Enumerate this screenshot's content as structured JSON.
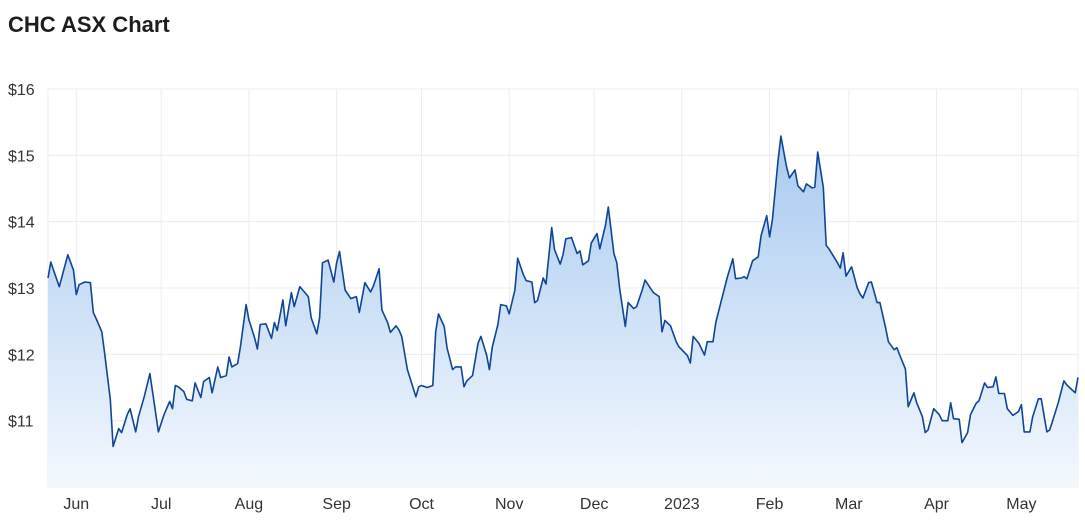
{
  "chart_data": {
    "type": "area",
    "title": "CHC ASX Chart",
    "xlabel": "",
    "ylabel": "",
    "xlim": [
      "2022-05-22",
      "2023-05-21"
    ],
    "ylim": [
      10,
      16
    ],
    "grid": true,
    "legend": "none",
    "y_ticks": [
      11,
      12,
      13,
      14,
      15,
      16
    ],
    "y_tick_labels": [
      "$11",
      "$12",
      "$13",
      "$14",
      "$15",
      "$16"
    ],
    "x_ticks": [
      "2022-06-01",
      "2022-07-01",
      "2022-08-01",
      "2022-09-01",
      "2022-10-01",
      "2022-11-01",
      "2022-12-01",
      "2023-01-01",
      "2023-02-01",
      "2023-03-01",
      "2023-04-01",
      "2023-05-01"
    ],
    "x_tick_labels": [
      "Jun",
      "Jul",
      "Aug",
      "Sep",
      "Oct",
      "Nov",
      "Dec",
      "2023",
      "Feb",
      "Mar",
      "Apr",
      "May"
    ],
    "colors": {
      "line": "#0f4596",
      "fill_top": "#a8caf0",
      "fill_bottom": "#f4f8fe",
      "grid": "#ececec"
    },
    "series": [
      {
        "x": [
          "2022-05-22",
          "2022-05-23",
          "2022-05-25",
          "2022-05-26",
          "2022-05-29",
          "2022-05-31",
          "2022-06-01",
          "2022-06-02",
          "2022-06-04",
          "2022-06-06",
          "2022-06-07",
          "2022-06-08",
          "2022-06-10",
          "2022-06-11",
          "2022-06-13",
          "2022-06-14",
          "2022-06-16",
          "2022-06-17",
          "2022-06-19",
          "2022-06-20",
          "2022-06-22",
          "2022-06-23",
          "2022-06-25",
          "2022-06-27",
          "2022-06-30",
          "2022-07-02",
          "2022-07-04",
          "2022-07-05",
          "2022-07-06",
          "2022-07-07",
          "2022-07-09",
          "2022-07-10",
          "2022-07-12",
          "2022-07-13",
          "2022-07-15",
          "2022-07-16",
          "2022-07-18",
          "2022-07-19",
          "2022-07-21",
          "2022-07-22",
          "2022-07-24",
          "2022-07-25",
          "2022-07-26",
          "2022-07-28",
          "2022-07-29",
          "2022-07-31",
          "2022-08-01",
          "2022-08-03",
          "2022-08-04",
          "2022-08-05",
          "2022-08-07",
          "2022-08-09",
          "2022-08-10",
          "2022-08-11",
          "2022-08-13",
          "2022-08-14",
          "2022-08-16",
          "2022-08-17",
          "2022-08-19",
          "2022-08-20",
          "2022-08-22",
          "2022-08-23",
          "2022-08-25",
          "2022-08-26",
          "2022-08-27",
          "2022-08-29",
          "2022-08-31",
          "2022-09-01",
          "2022-09-02",
          "2022-09-04",
          "2022-09-06",
          "2022-09-08",
          "2022-09-09",
          "2022-09-11",
          "2022-09-13",
          "2022-09-14",
          "2022-09-16",
          "2022-09-17",
          "2022-09-19",
          "2022-09-20",
          "2022-09-22",
          "2022-09-23",
          "2022-09-24",
          "2022-09-26",
          "2022-09-29",
          "2022-09-30",
          "2022-10-01",
          "2022-10-03",
          "2022-10-05",
          "2022-10-06",
          "2022-10-07",
          "2022-10-09",
          "2022-10-10",
          "2022-10-12",
          "2022-10-13",
          "2022-10-15",
          "2022-10-16",
          "2022-10-17",
          "2022-10-19",
          "2022-10-21",
          "2022-10-22",
          "2022-10-24",
          "2022-10-25",
          "2022-10-26",
          "2022-10-28",
          "2022-10-29",
          "2022-10-31",
          "2022-11-01",
          "2022-11-03",
          "2022-11-04",
          "2022-11-06",
          "2022-11-07",
          "2022-11-09",
          "2022-11-10",
          "2022-11-11",
          "2022-11-13",
          "2022-11-14",
          "2022-11-16",
          "2022-11-17",
          "2022-11-19",
          "2022-11-20",
          "2022-11-21",
          "2022-11-23",
          "2022-11-25",
          "2022-11-26",
          "2022-11-27",
          "2022-11-29",
          "2022-11-30",
          "2022-12-02",
          "2022-12-03",
          "2022-12-05",
          "2022-12-06",
          "2022-12-08",
          "2022-12-09",
          "2022-12-10",
          "2022-12-12",
          "2022-12-13",
          "2022-12-15",
          "2022-12-16",
          "2022-12-18",
          "2022-12-19",
          "2022-12-21",
          "2022-12-22",
          "2022-12-24",
          "2022-12-25",
          "2022-12-26",
          "2022-12-28",
          "2022-12-30",
          "2022-12-31",
          "2023-01-01",
          "2023-01-03",
          "2023-01-04",
          "2023-01-05",
          "2023-01-07",
          "2023-01-09",
          "2023-01-10",
          "2023-01-12",
          "2023-01-13",
          "2023-01-15",
          "2023-01-17",
          "2023-01-19",
          "2023-01-20",
          "2023-01-22",
          "2023-01-23",
          "2023-01-24",
          "2023-01-26",
          "2023-01-28",
          "2023-01-29",
          "2023-01-31",
          "2023-02-01",
          "2023-02-02",
          "2023-02-04",
          "2023-02-05",
          "2023-02-07",
          "2023-02-08",
          "2023-02-10",
          "2023-02-11",
          "2023-02-13",
          "2023-02-14",
          "2023-02-16",
          "2023-02-17",
          "2023-02-18",
          "2023-02-20",
          "2023-02-21",
          "2023-02-22",
          "2023-02-25",
          "2023-02-26",
          "2023-02-27",
          "2023-02-28",
          "2023-03-02",
          "2023-03-04",
          "2023-03-05",
          "2023-03-06",
          "2023-03-08",
          "2023-03-09",
          "2023-03-11",
          "2023-03-12",
          "2023-03-14",
          "2023-03-15",
          "2023-03-17",
          "2023-03-18",
          "2023-03-19",
          "2023-03-21",
          "2023-03-22",
          "2023-03-24",
          "2023-03-25",
          "2023-03-27",
          "2023-03-28",
          "2023-03-29",
          "2023-03-31",
          "2023-04-02",
          "2023-04-03",
          "2023-04-05",
          "2023-04-06",
          "2023-04-07",
          "2023-04-09",
          "2023-04-10",
          "2023-04-12",
          "2023-04-13",
          "2023-04-15",
          "2023-04-16",
          "2023-04-18",
          "2023-04-19",
          "2023-04-21",
          "2023-04-22",
          "2023-04-23",
          "2023-04-25",
          "2023-04-26",
          "2023-04-28",
          "2023-04-30",
          "2023-05-01",
          "2023-05-02",
          "2023-05-04",
          "2023-05-05",
          "2023-05-07",
          "2023-05-08",
          "2023-05-10",
          "2023-05-11",
          "2023-05-12",
          "2023-05-14",
          "2023-05-16",
          "2023-05-17",
          "2023-05-18",
          "2023-05-20",
          "2023-05-21"
        ],
        "y": [
          13.15,
          13.39,
          13.14,
          13.02,
          13.5,
          13.27,
          12.9,
          13.05,
          13.09,
          13.08,
          12.63,
          12.54,
          12.34,
          12.02,
          11.32,
          10.61,
          10.88,
          10.82,
          11.09,
          11.18,
          10.83,
          11.06,
          11.36,
          11.71,
          10.83,
          11.09,
          11.29,
          11.18,
          11.53,
          11.51,
          11.44,
          11.32,
          11.3,
          11.57,
          11.35,
          11.59,
          11.65,
          11.42,
          11.81,
          11.65,
          11.68,
          11.96,
          11.81,
          11.86,
          12.11,
          12.75,
          12.52,
          12.25,
          12.08,
          12.45,
          12.46,
          12.24,
          12.48,
          12.36,
          12.82,
          12.43,
          12.93,
          12.72,
          13.02,
          12.97,
          12.87,
          12.55,
          12.31,
          12.55,
          13.38,
          13.42,
          13.09,
          13.38,
          13.55,
          12.97,
          12.84,
          12.87,
          12.63,
          13.08,
          12.94,
          13.03,
          13.29,
          12.67,
          12.48,
          12.33,
          12.43,
          12.37,
          12.27,
          11.77,
          11.36,
          11.51,
          11.53,
          11.5,
          11.53,
          12.34,
          12.61,
          12.42,
          12.1,
          11.77,
          11.81,
          11.81,
          11.51,
          11.6,
          11.68,
          12.17,
          12.27,
          11.99,
          11.77,
          12.11,
          12.45,
          12.75,
          12.73,
          12.61,
          12.97,
          13.45,
          13.2,
          13.11,
          13.09,
          12.78,
          12.81,
          13.15,
          13.06,
          13.91,
          13.58,
          13.36,
          13.5,
          13.74,
          13.76,
          13.52,
          13.56,
          13.35,
          13.41,
          13.68,
          13.82,
          13.59,
          13.94,
          14.22,
          13.52,
          13.38,
          13.0,
          12.42,
          12.78,
          12.69,
          12.72,
          12.97,
          13.12,
          12.99,
          12.93,
          12.87,
          12.34,
          12.51,
          12.43,
          12.19,
          12.11,
          12.07,
          11.98,
          11.87,
          12.27,
          12.17,
          11.99,
          12.19,
          12.19,
          12.48,
          12.82,
          13.15,
          13.44,
          13.14,
          13.15,
          13.17,
          13.14,
          13.41,
          13.47,
          13.79,
          14.09,
          13.77,
          14.03,
          14.93,
          15.29,
          14.83,
          14.66,
          14.78,
          14.54,
          14.45,
          14.57,
          14.51,
          14.52,
          15.05,
          14.52,
          13.64,
          13.59,
          13.38,
          13.3,
          13.53,
          13.18,
          13.32,
          13.0,
          12.91,
          12.85,
          13.08,
          13.09,
          12.78,
          12.78,
          12.4,
          12.19,
          12.07,
          12.1,
          11.99,
          11.78,
          11.21,
          11.42,
          11.27,
          11.06,
          10.82,
          10.86,
          11.18,
          11.09,
          11.0,
          11.0,
          11.27,
          11.03,
          11.02,
          10.67,
          10.82,
          11.09,
          11.26,
          11.3,
          11.57,
          11.5,
          11.51,
          11.66,
          11.41,
          11.41,
          11.18,
          11.08,
          11.14,
          11.24,
          10.83,
          10.83,
          11.06,
          11.33,
          11.33,
          10.83,
          10.86,
          10.99,
          11.27,
          11.6,
          11.54,
          11.5,
          11.42,
          11.65
        ]
      }
    ]
  }
}
